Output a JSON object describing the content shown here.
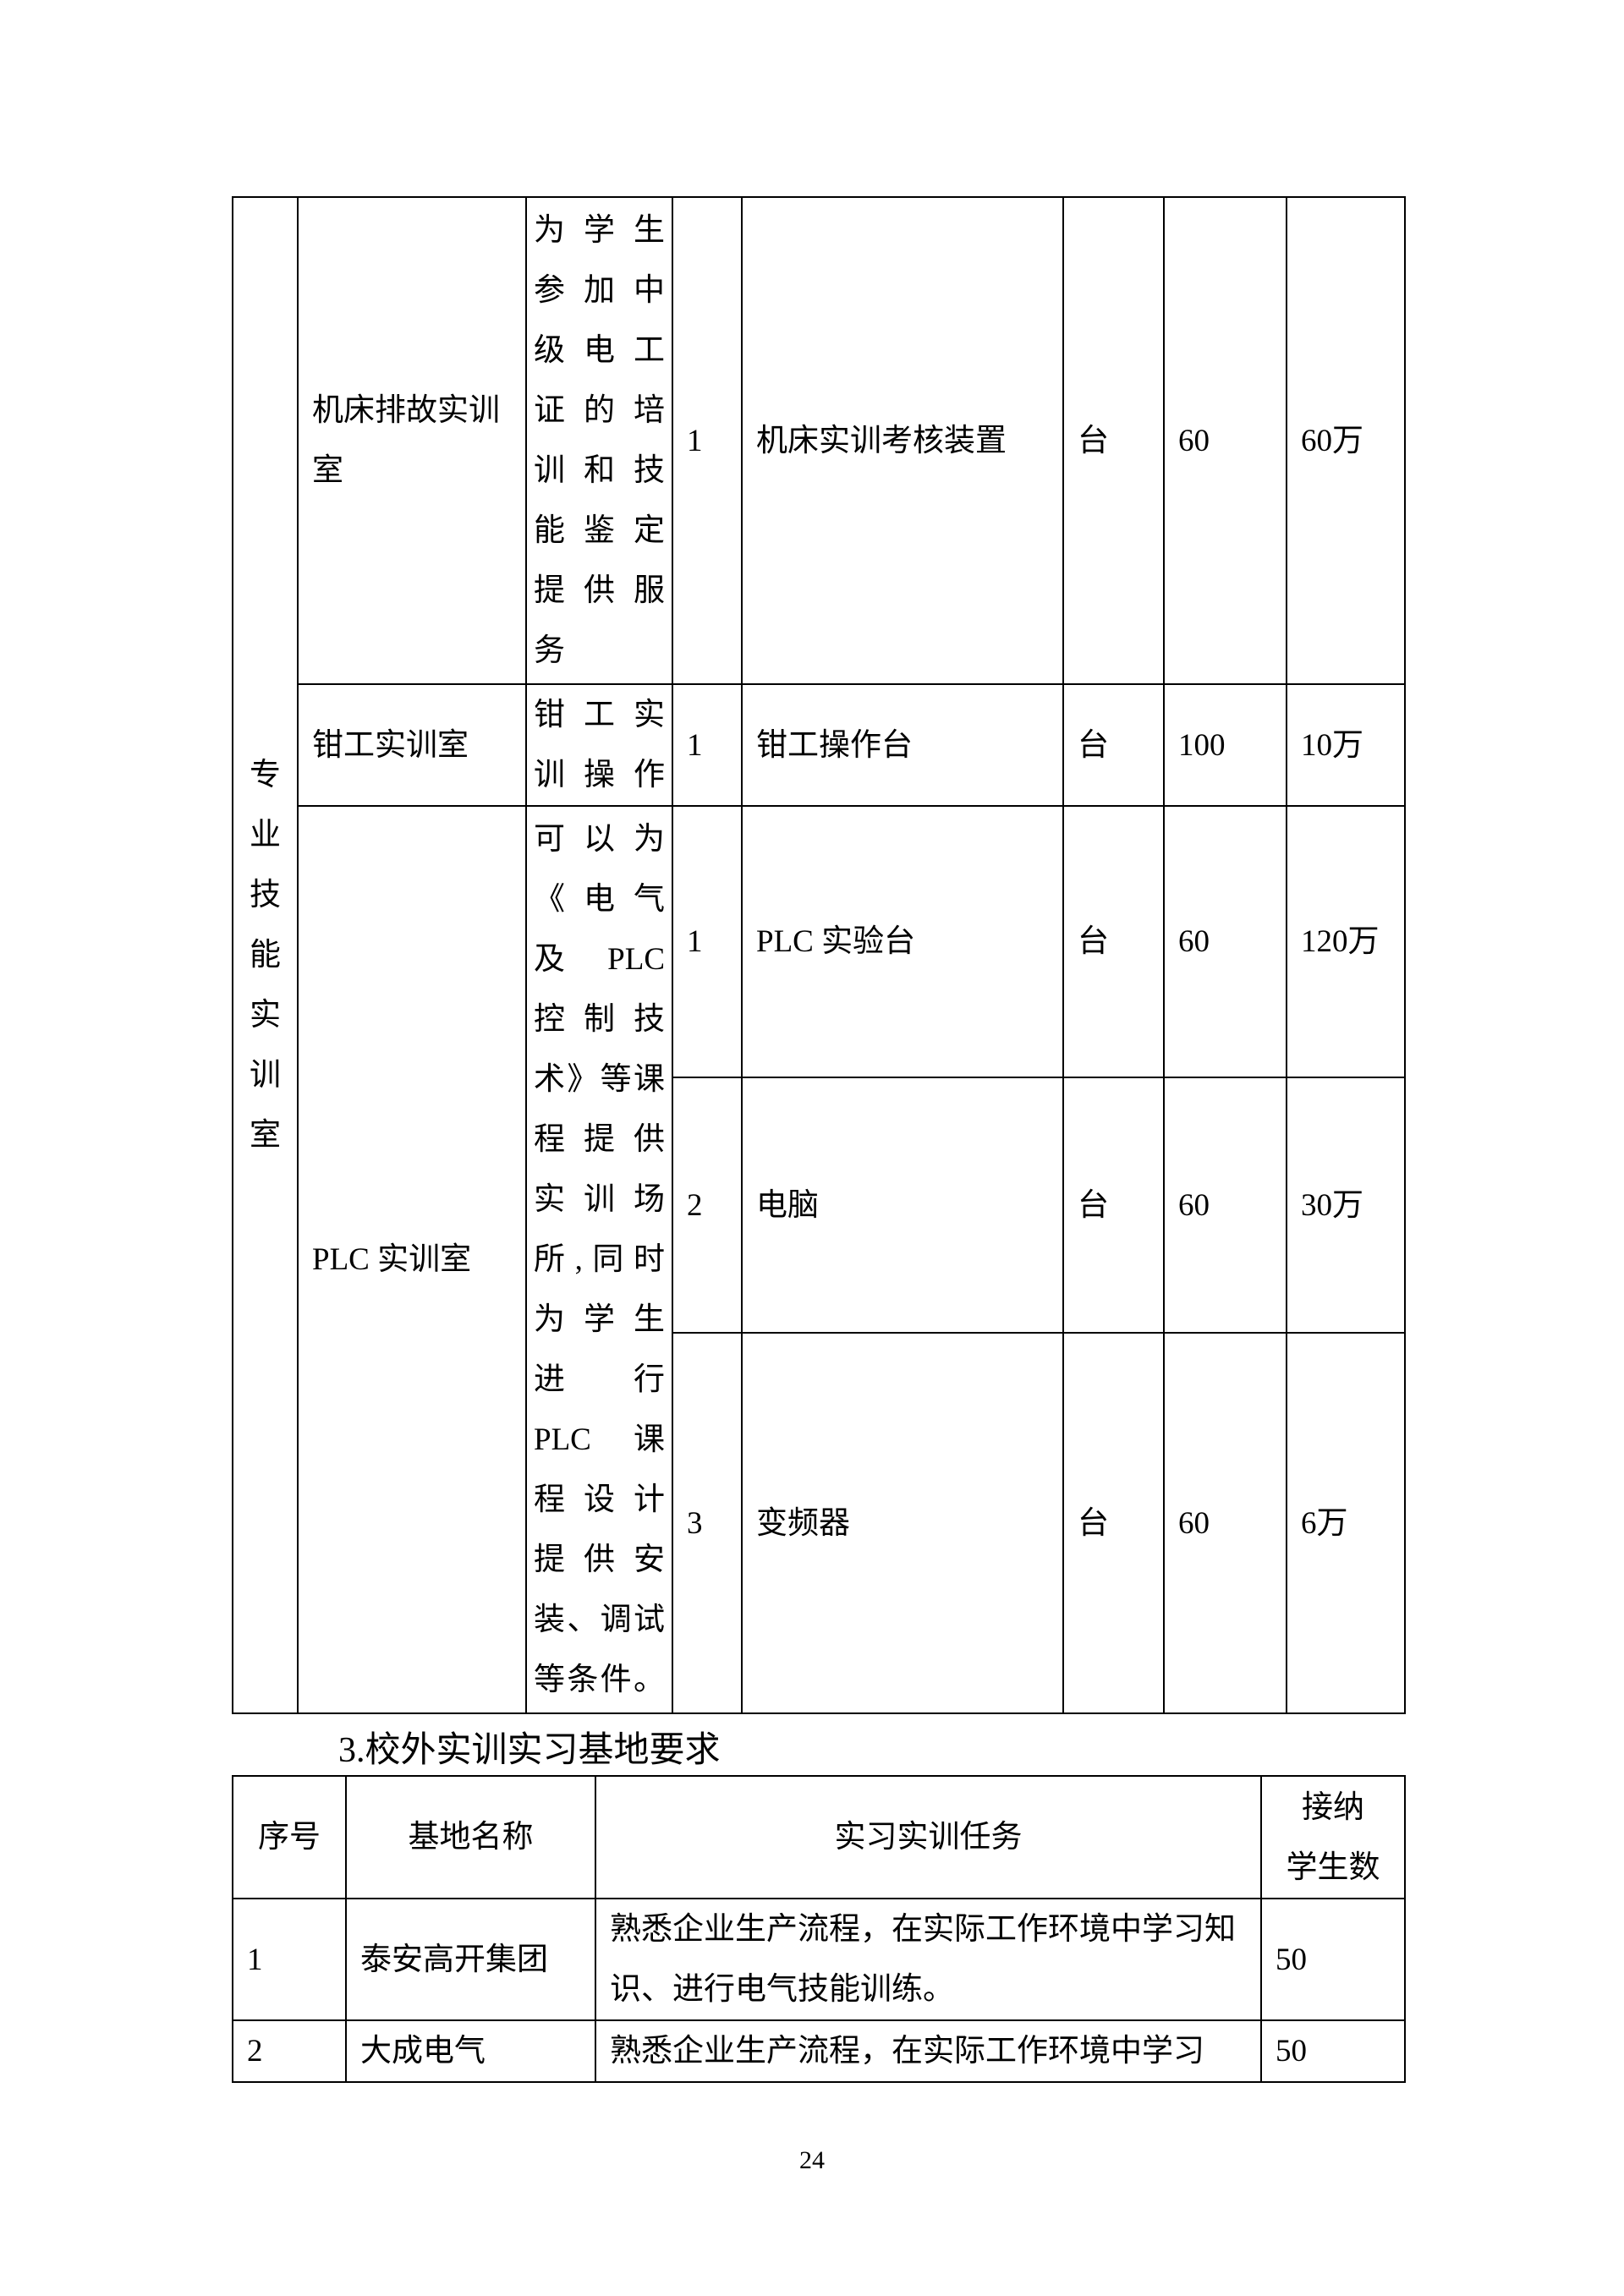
{
  "table1": {
    "category_chars": [
      "专",
      "业",
      "技",
      "能",
      "实",
      "训",
      "室"
    ],
    "rows": [
      {
        "room": "机床排故实训室",
        "desc_lines": [
          "为学生",
          "参加中",
          "级电工",
          "证的培",
          "训和技",
          "能鉴定",
          "提供服",
          "务"
        ],
        "no": "1",
        "equipment": "机床实训考核装置",
        "unit": "台",
        "qty": "60",
        "cost": "60万"
      },
      {
        "room": "钳工实训室",
        "desc_lines": [
          "钳工实",
          "训操作"
        ],
        "no": "1",
        "equipment": "钳工操作台",
        "unit": "台",
        "qty": "100",
        "cost": "10万"
      },
      {
        "room": "PLC 实训室",
        "desc_lines": [
          "可以为",
          "《电气",
          "及 PLC",
          "控制技",
          "术》等课",
          "程提供",
          "实训场",
          "所,同时",
          "为学生",
          "进  行",
          "PLC 课",
          "程设计",
          "提供安",
          "装、调试",
          "等条件。"
        ],
        "no": "1",
        "equipment": "PLC 实验台",
        "unit": "台",
        "qty": "60",
        "cost": "120万"
      },
      {
        "no": "2",
        "equipment": "电脑",
        "unit": "台",
        "qty": "60",
        "cost": "30万"
      },
      {
        "no": "3",
        "equipment": "变频器",
        "unit": "台",
        "qty": "60",
        "cost": "6万"
      }
    ]
  },
  "section_heading": "3.校外实训实习基地要求",
  "table2": {
    "headers": [
      "序号",
      "基地名称",
      "实习实训任务",
      "接纳学生数"
    ],
    "header_last_lines": [
      "接纳",
      "学生数"
    ],
    "rows": [
      {
        "no": "1",
        "name": "泰安高开集团",
        "task": "熟悉企业生产流程，在实际工作环境中学习知识、进行电气技能训练。",
        "students": "50"
      },
      {
        "no": "2",
        "name": "大成电气",
        "task": "熟悉企业生产流程，在实际工作环境中学习",
        "students": "50"
      }
    ]
  },
  "page_number": "24"
}
